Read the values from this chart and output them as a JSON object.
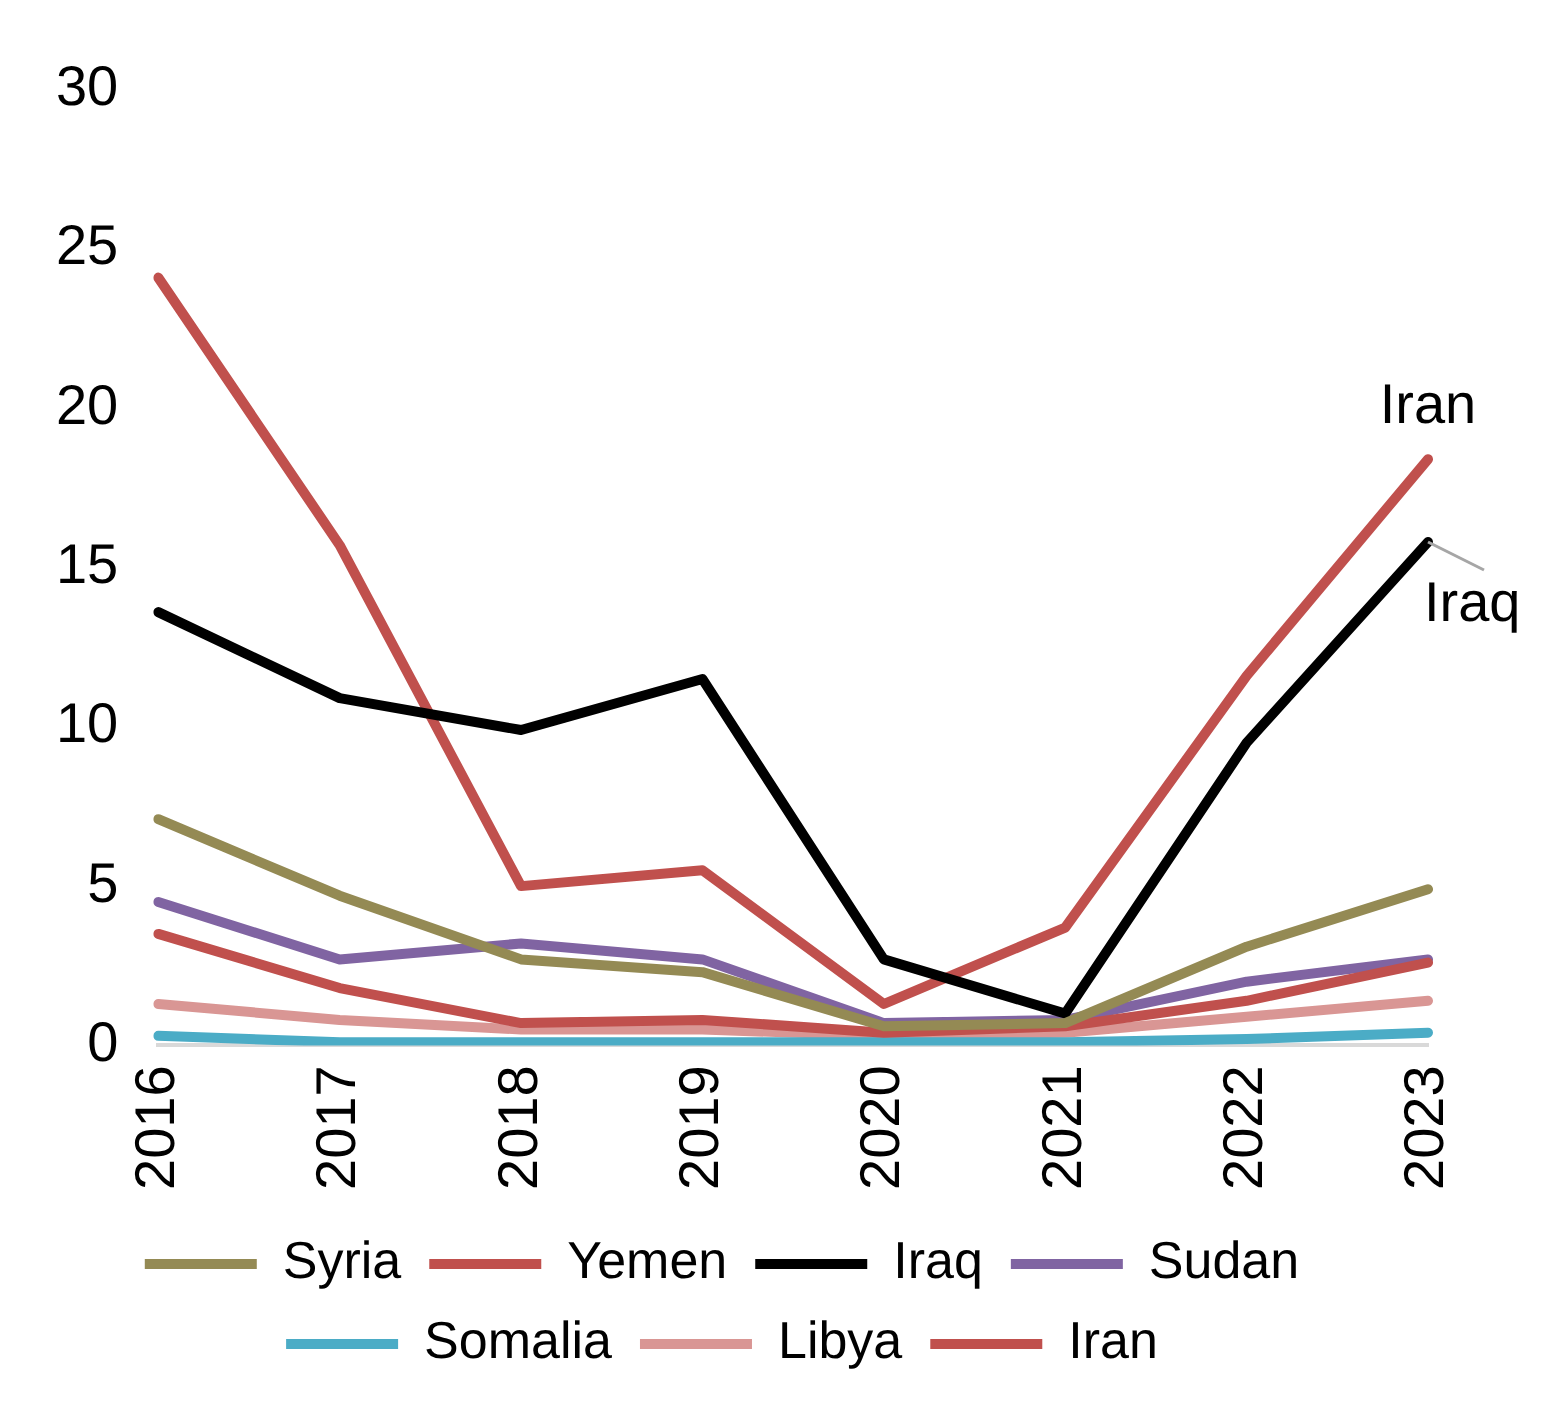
{
  "chart_data": {
    "type": "line",
    "categories": [
      "2016",
      "2017",
      "2018",
      "2019",
      "2020",
      "2021",
      "2022",
      "2023"
    ],
    "series": [
      {
        "name": "Syria",
        "color": "#948a54",
        "values": [
          7.1,
          4.7,
          2.7,
          2.3,
          0.6,
          0.7,
          3.1,
          4.9
        ]
      },
      {
        "name": "Yemen",
        "color": "#c0504d",
        "values": [
          3.5,
          1.8,
          0.7,
          0.8,
          0.4,
          0.6,
          1.4,
          2.6
        ]
      },
      {
        "name": "Iraq",
        "color": "#000000",
        "values": [
          13.6,
          10.9,
          9.9,
          11.5,
          2.7,
          1.0,
          9.5,
          15.8
        ]
      },
      {
        "name": "Sudan",
        "color": "#8064a2",
        "values": [
          4.5,
          2.7,
          3.2,
          2.7,
          0.7,
          0.8,
          2.0,
          2.7
        ]
      },
      {
        "name": "Somalia",
        "color": "#4bacc6",
        "values": [
          0.3,
          0.1,
          0.1,
          0.1,
          0.1,
          0.1,
          0.2,
          0.4
        ]
      },
      {
        "name": "Libya",
        "color": "#d99694",
        "values": [
          1.3,
          0.8,
          0.5,
          0.5,
          0.3,
          0.4,
          0.9,
          1.4
        ]
      },
      {
        "name": "Iran",
        "color": "#c0504d",
        "values": [
          24.1,
          15.7,
          5.0,
          5.5,
          1.3,
          3.7,
          11.6,
          18.4
        ]
      }
    ],
    "ylim": [
      0,
      30
    ],
    "yticks": [
      0,
      5,
      10,
      15,
      20,
      25,
      30
    ],
    "grid": false,
    "legend": "bottom",
    "marker": "none",
    "line_style": "solid",
    "annotations": [
      {
        "text": "Iran",
        "x": "2023",
        "y": 18.4
      },
      {
        "text": "Iraq",
        "x": "2023",
        "y": 15.8
      }
    ]
  }
}
